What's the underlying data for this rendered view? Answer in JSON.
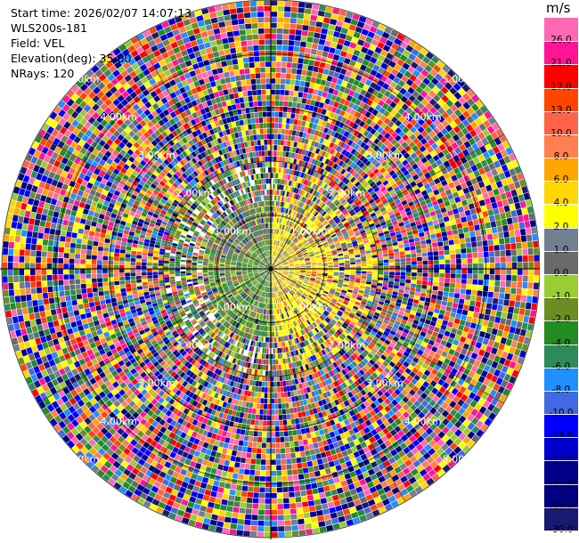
{
  "header": {
    "start_time": "Start time: 2026/02/07 14:07:13",
    "station": "WLS200s-181",
    "field": "Field: VEL",
    "elevation": "Elevation(deg): 35.00",
    "nrays": "NRays: 120"
  },
  "colorbar": {
    "unit": "m/s",
    "levels": [
      "-30.0",
      "-26.0",
      "-21.0",
      "-17.0",
      "-13.0",
      "-10.0",
      "-8.0",
      "-6.0",
      "-4.0",
      "-2.0",
      "-1.0",
      "0.0",
      "1.0",
      "2.0",
      "4.0",
      "6.0",
      "8.0",
      "10.0",
      "13.0",
      "17.0",
      "21.0",
      "26.0"
    ],
    "colors": [
      "#191970",
      "#000080",
      "#00008b",
      "#0000cd",
      "#0000ff",
      "#4169e1",
      "#1e90ff",
      "#2e8b57",
      "#228b22",
      "#6b8e23",
      "#9acd32",
      "#696969",
      "#708090",
      "#ffff00",
      "#ffd700",
      "#ffa500",
      "#ff7f50",
      "#ff6347",
      "#ff4500",
      "#ff0000",
      "#ff1493",
      "#ff69b4"
    ]
  },
  "chart_data": {
    "type": "heatmap",
    "subtype": "ppi-polar",
    "field": "VEL",
    "unit": "m/s",
    "elevation_deg": 35.0,
    "n_rays": 120,
    "range_rings_km": [
      1.0,
      2.0,
      3.0,
      4.0,
      5.0
    ],
    "ring_labels": [
      "1.00km",
      "2.00km",
      "3.00km",
      "4.00km",
      "5.00km"
    ],
    "max_range_km": 5.0,
    "vmin": -30.0,
    "vmax": 30.0,
    "near_field_pattern": {
      "east_sector": "positive (yellow/orange, 1–8 m/s)",
      "west_sector": "negative (green, -1 to -8 m/s)",
      "far_field": "noise across full scale"
    }
  }
}
